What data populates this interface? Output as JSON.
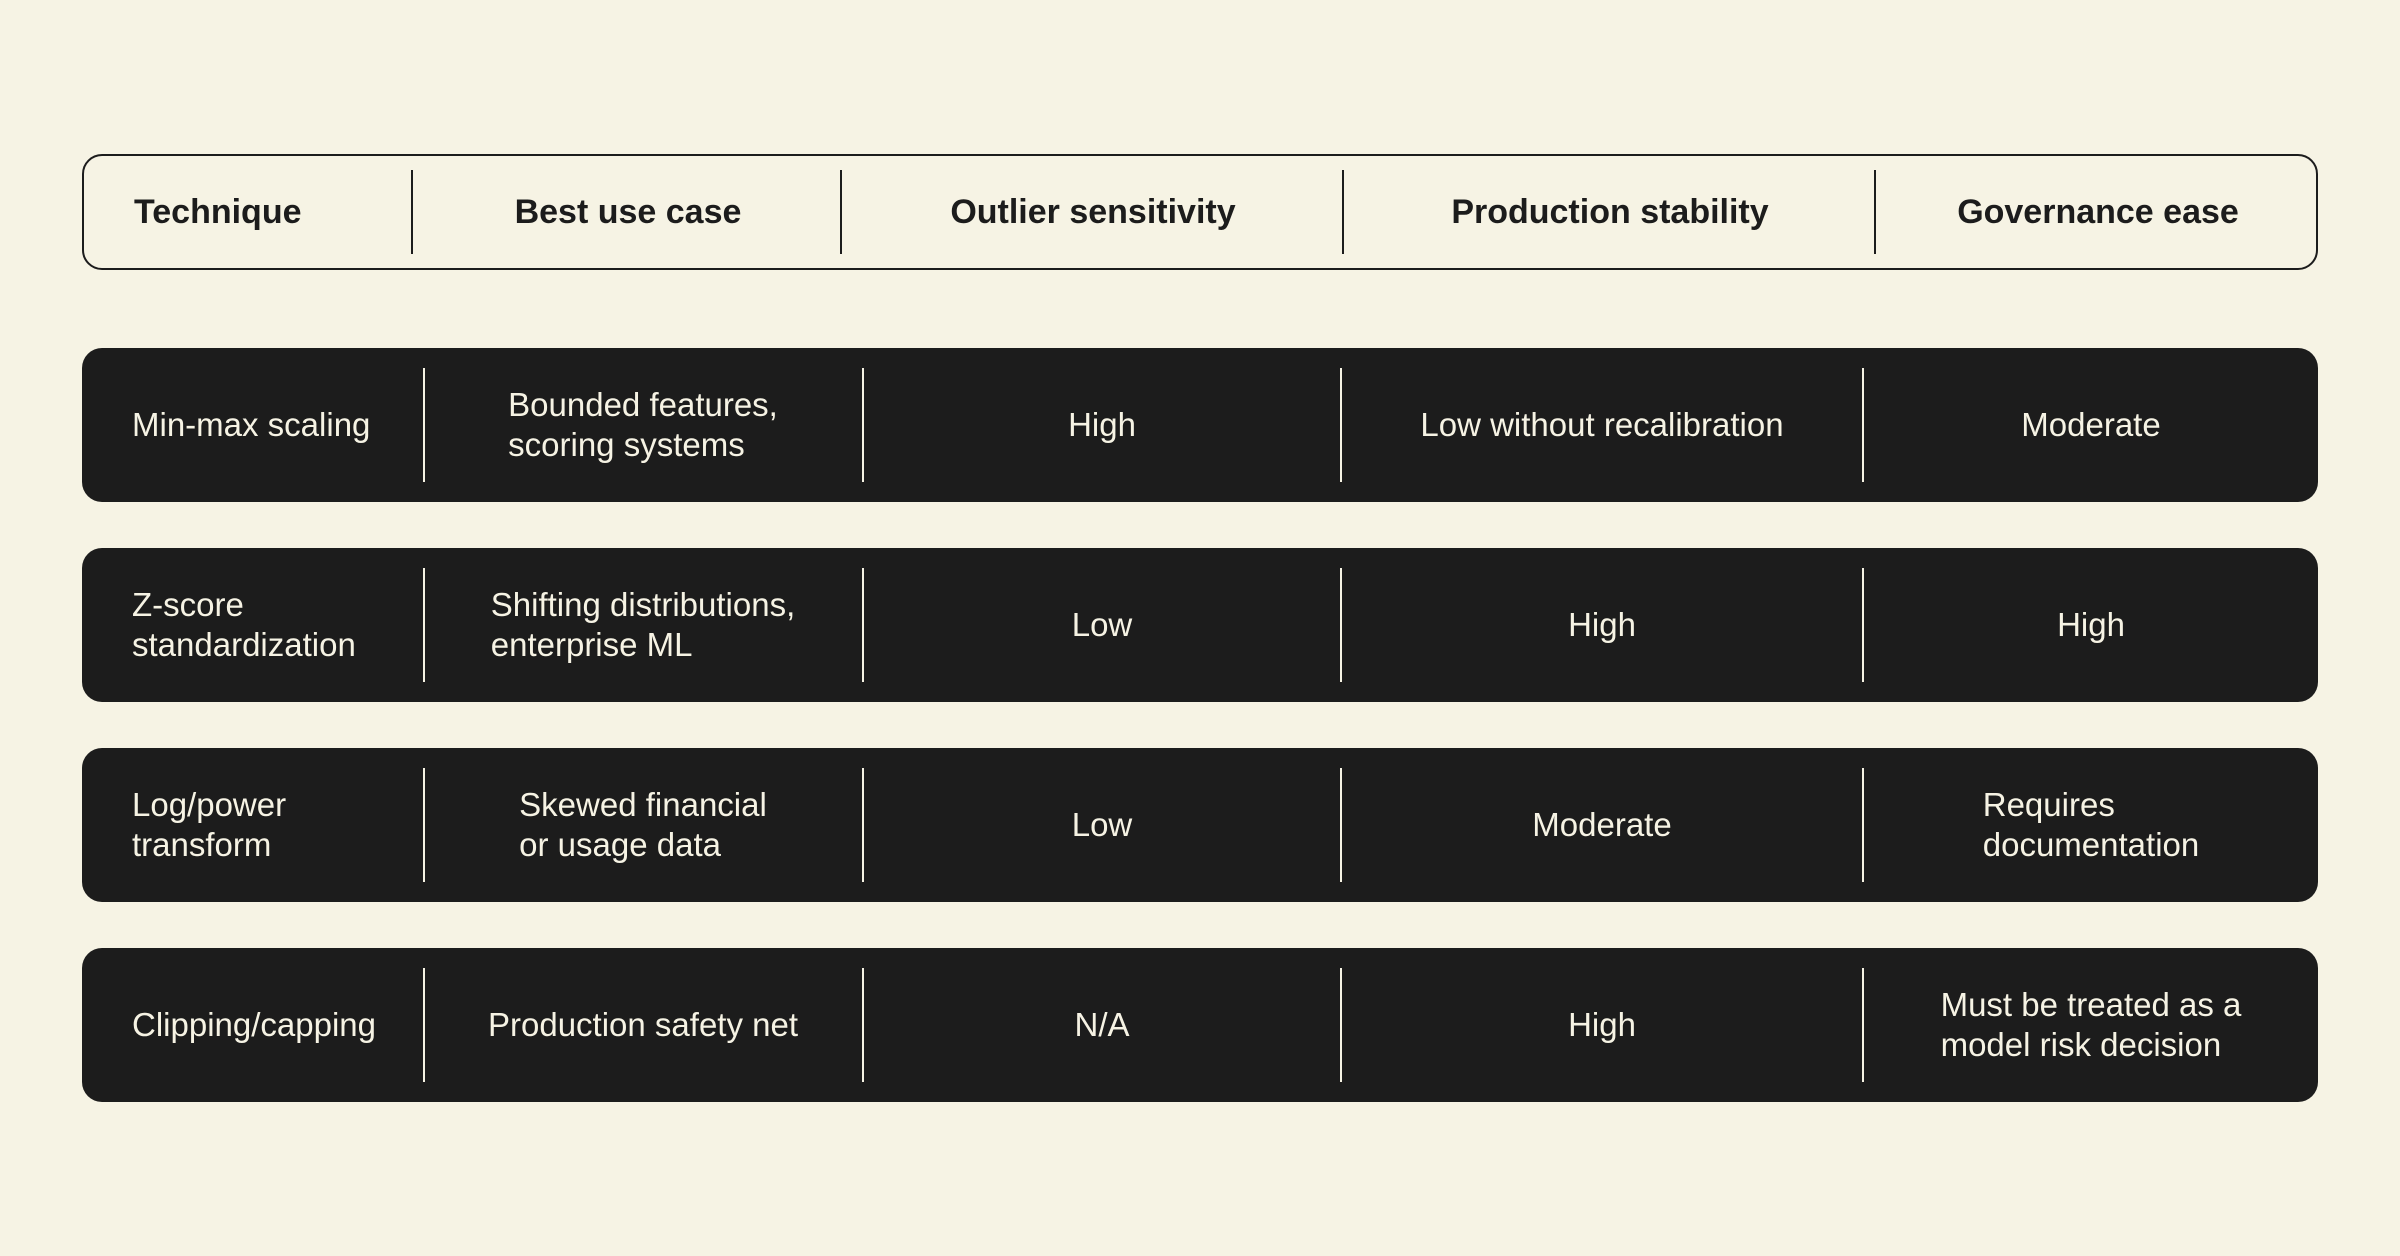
{
  "headers": {
    "technique": "Technique",
    "best_use_case": "Best use case",
    "outlier_sensitivity": "Outlier sensitivity",
    "production_stability": "Production stability",
    "governance_ease": "Governance ease"
  },
  "rows": [
    {
      "technique": "Min-max scaling",
      "best_use_case": "Bounded features,\nscoring systems",
      "outlier_sensitivity": "High",
      "production_stability": "Low without recalibration",
      "governance_ease": "Moderate"
    },
    {
      "technique": "Z-score\nstandardization",
      "best_use_case": "Shifting distributions,\nenterprise ML",
      "outlier_sensitivity": "Low",
      "production_stability": "High",
      "governance_ease": "High"
    },
    {
      "technique": "Log/power\ntransform",
      "best_use_case": "Skewed financial\nor usage data",
      "outlier_sensitivity": "Low",
      "production_stability": "Moderate",
      "governance_ease": "Requires\ndocumentation"
    },
    {
      "technique": "Clipping/capping",
      "best_use_case": "Production safety net",
      "outlier_sensitivity": "N/A",
      "production_stability": "High",
      "governance_ease": "Must be treated as a\nmodel risk decision"
    }
  ]
}
